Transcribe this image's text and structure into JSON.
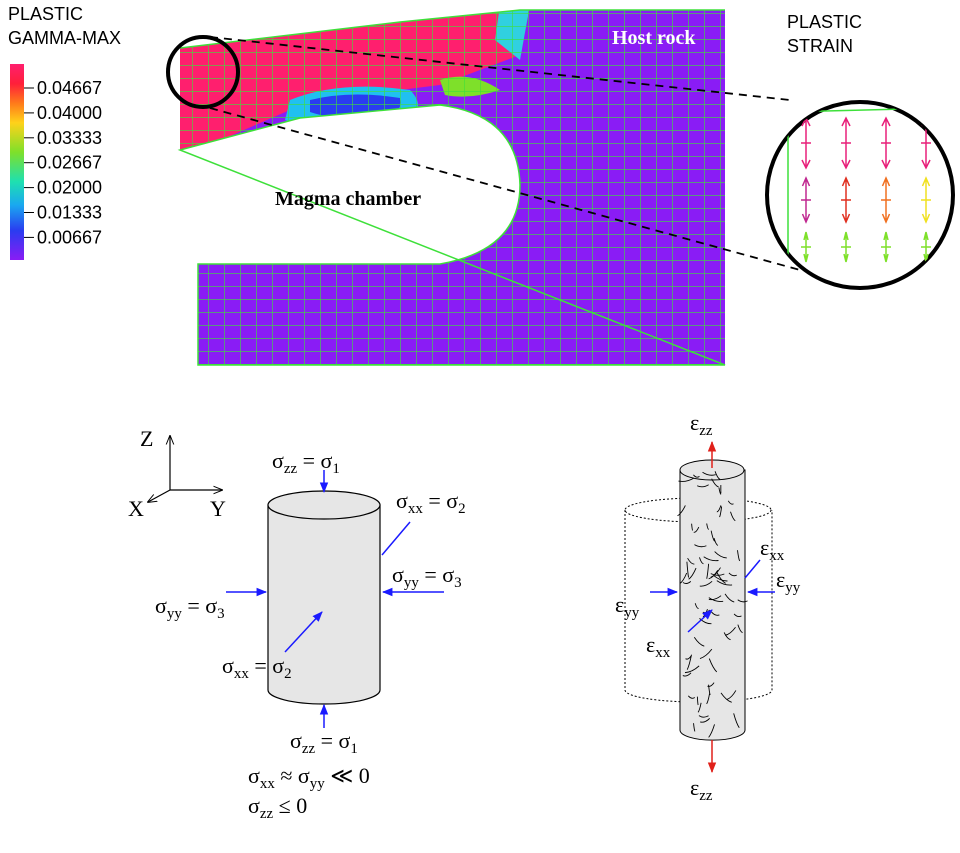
{
  "contour_figure": {
    "legend": {
      "title": [
        "PLASTIC",
        "GAMMA-MAX"
      ],
      "ticks": [
        "0.04667",
        "0.04000",
        "0.03333",
        "0.02667",
        "0.02000",
        "0.01333",
        "0.00667"
      ]
    },
    "labels": {
      "host_rock": "Host rock",
      "magma_chamber": "Magma chamber"
    },
    "inset_title": [
      "PLASTIC",
      "STRAIN"
    ]
  },
  "stress_diagram": {
    "axes": {
      "z": "Z",
      "x": "X",
      "y": "Y"
    },
    "labels": [
      [
        "σ",
        "zz",
        " = σ",
        "1"
      ],
      [
        "σ",
        "xx",
        " = σ",
        "2"
      ],
      [
        "σ",
        "yy",
        " = σ",
        "3"
      ],
      [
        "σ",
        "yy",
        " = σ",
        "3"
      ],
      [
        "σ",
        "xx",
        " = σ",
        "2"
      ],
      [
        "σ",
        "zz",
        " = σ",
        "1"
      ]
    ],
    "conditions": [
      [
        "σ",
        "xx",
        " ≈ σ",
        "yy",
        " ≪ 0"
      ],
      [
        "σ",
        "zz",
        " ≤ 0"
      ]
    ]
  },
  "strain_diagram": {
    "labels": [
      [
        "ε",
        "zz"
      ],
      [
        "ε",
        "xx"
      ],
      [
        "ε",
        "yy"
      ],
      [
        "ε",
        "yy"
      ],
      [
        "ε",
        "xx"
      ],
      [
        "ε",
        "zz"
      ]
    ]
  }
}
